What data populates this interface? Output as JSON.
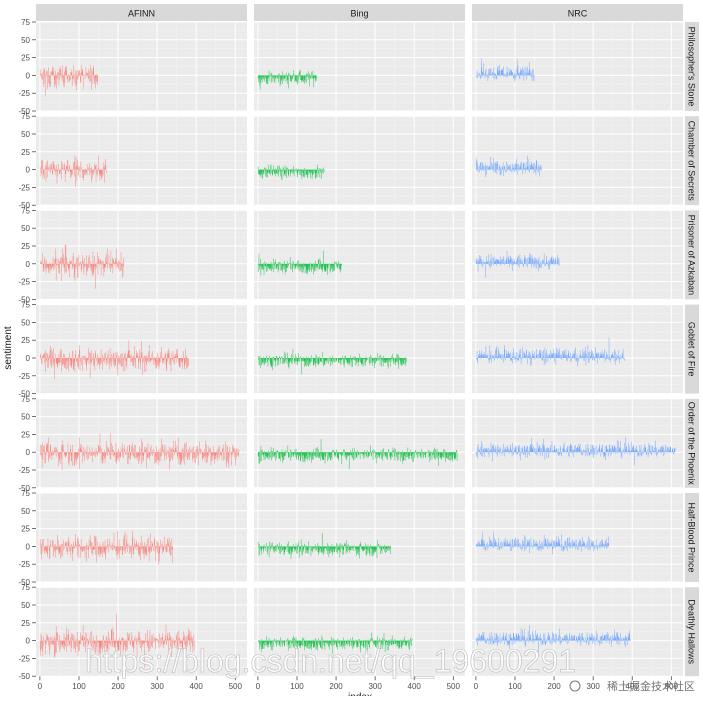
{
  "chart_data": {
    "type": "bar",
    "title": "",
    "xlabel": "index",
    "ylabel": "sentiment",
    "ylim": [
      -50,
      75
    ],
    "xlim": [
      -10,
      530
    ],
    "yticks": [
      -50,
      -25,
      0,
      25,
      50,
      75
    ],
    "xticks": [
      0,
      100,
      200,
      300,
      400,
      500
    ],
    "grid": true,
    "legend": "none",
    "column_facets": [
      {
        "name": "AFINN",
        "color": "#F8766D"
      },
      {
        "name": "Bing",
        "color": "#00BA38"
      },
      {
        "name": "NRC",
        "color": "#619CFF"
      }
    ],
    "row_facets": [
      {
        "name": "Philosopher's Stone",
        "length": 150
      },
      {
        "name": "Chamber of Secrets",
        "length": 170
      },
      {
        "name": "Prisoner of Azkaban",
        "length": 215
      },
      {
        "name": "Goblet of Fire",
        "length": 380
      },
      {
        "name": "Order of the Phoenix",
        "length": 510
      },
      {
        "name": "Half-Blood Prince",
        "length": 340
      },
      {
        "name": "Deathly Hallows",
        "length": 395
      }
    ],
    "series_profiles": {
      "AFINN": {
        "mean": -2,
        "amplitude": 16
      },
      "Bing": {
        "mean": -4,
        "amplitude": 9
      },
      "NRC": {
        "mean": 3,
        "amplitude": 10
      }
    }
  },
  "watermark": "https://blog.csdn.net/qq_19600291",
  "watermark_logo": "稀土掘金技术社区"
}
